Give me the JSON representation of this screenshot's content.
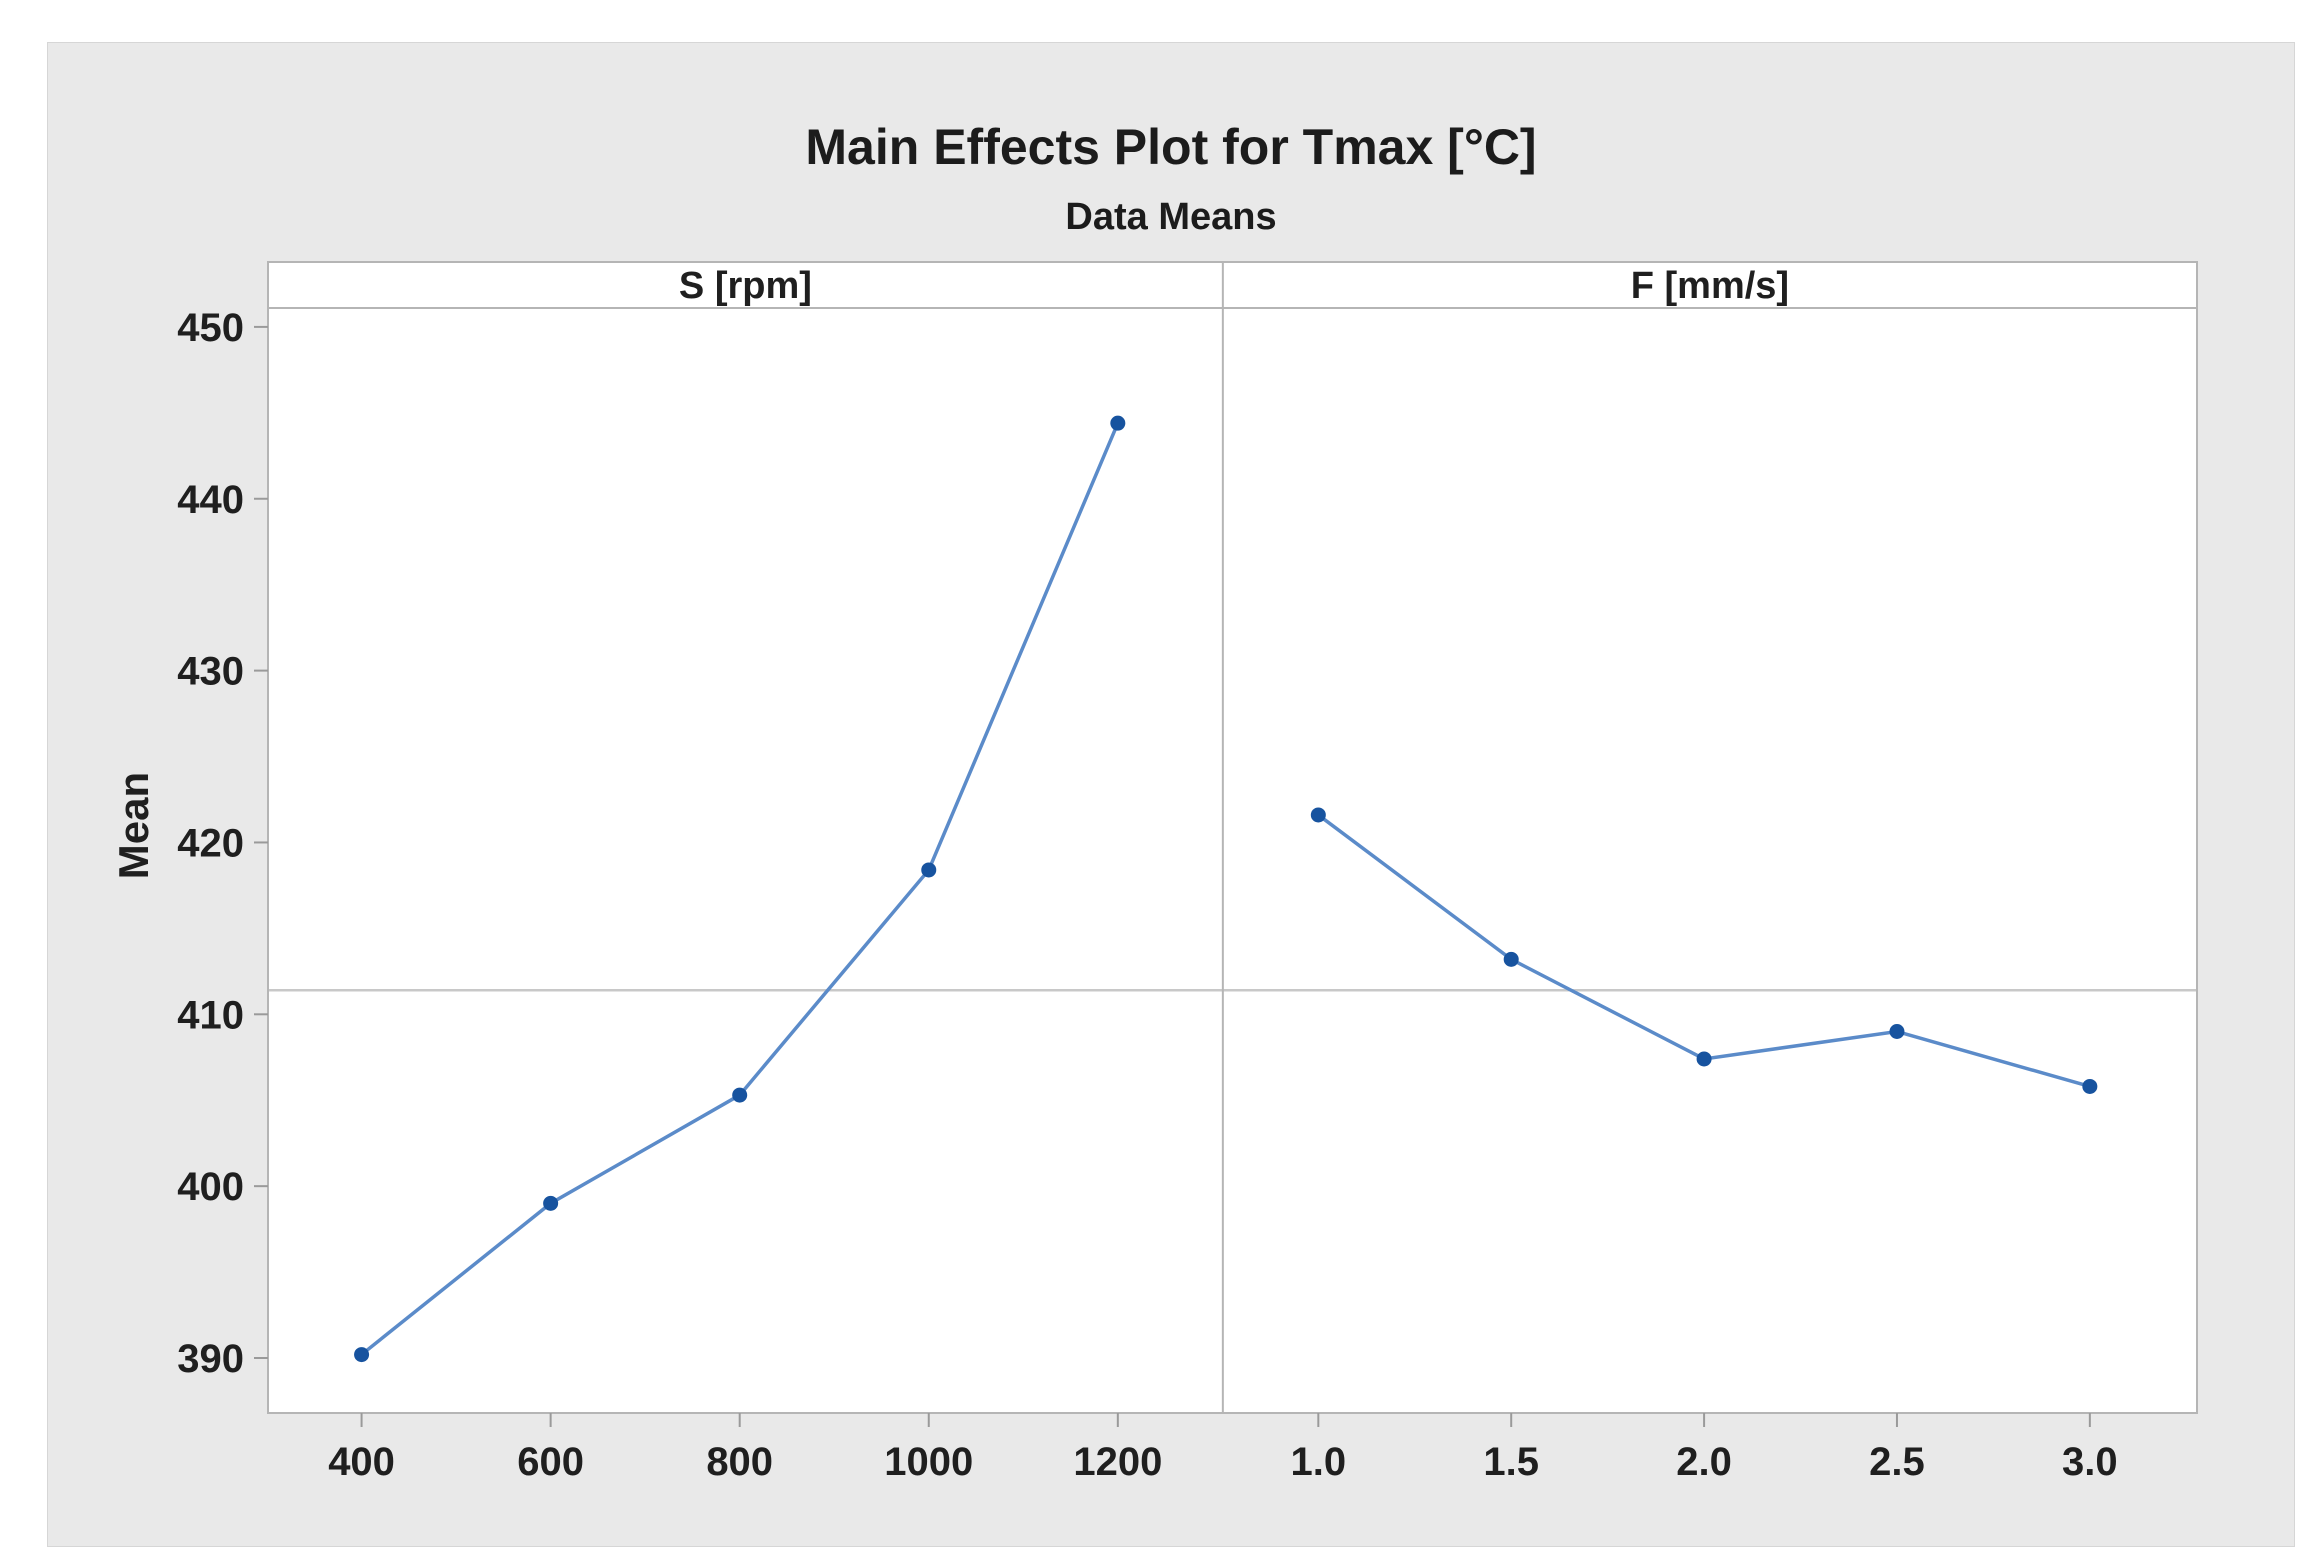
{
  "title": "Main Effects Plot for Tmax [°C]",
  "subtitle": "Data Means",
  "ylabel": "Mean",
  "colors": {
    "canvas_bg": "#e9e9e9",
    "panel_bg": "#ffffff",
    "frame": "#b5b5b5",
    "tick": "#9a9a9a",
    "reference_line": "#c8c8c8",
    "series_line": "#5b8bc9",
    "marker": "#17539f",
    "text": "#1f1f1f"
  },
  "chart_data": {
    "type": "line",
    "title": "Main Effects Plot for Tmax [°C]",
    "subtitle": "Data Means",
    "ylabel": "Mean",
    "grid": false,
    "legend_position": "none",
    "ylim": [
      386.8,
      451.1
    ],
    "yticks": [
      390,
      400,
      410,
      420,
      430,
      440,
      450
    ],
    "reference_line_mean": 411.4,
    "panels": [
      {
        "label": "S [rpm]",
        "xtick_labels": [
          "400",
          "600",
          "800",
          "1000",
          "1200"
        ],
        "x": [
          400,
          600,
          800,
          1000,
          1200
        ],
        "means": [
          390.2,
          399.0,
          405.3,
          418.4,
          444.4
        ]
      },
      {
        "label": "F [mm/s]",
        "xtick_labels": [
          "1.0",
          "1.5",
          "2.0",
          "2.5",
          "3.0"
        ],
        "x": [
          1.0,
          1.5,
          2.0,
          2.5,
          3.0
        ],
        "means": [
          421.6,
          413.2,
          407.4,
          409.0,
          405.8
        ]
      }
    ]
  }
}
